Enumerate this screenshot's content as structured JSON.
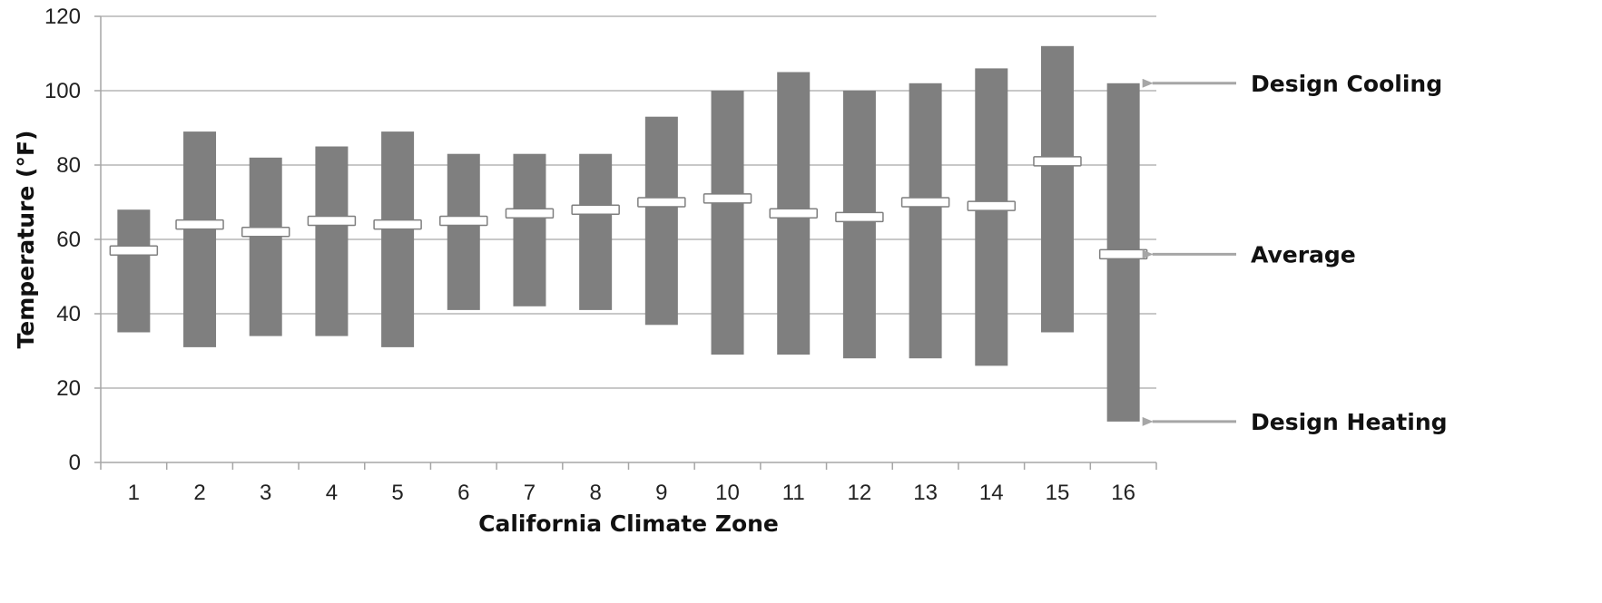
{
  "chart_data": {
    "type": "bar",
    "subtype": "floating-range-with-average-marker",
    "title": "",
    "xlabel": "California Climate Zone",
    "ylabel": "Temperature (°F)",
    "ylim": [
      0,
      120
    ],
    "yticks": [
      0,
      20,
      40,
      60,
      80,
      100,
      120
    ],
    "categories": [
      "1",
      "2",
      "3",
      "4",
      "5",
      "6",
      "7",
      "8",
      "9",
      "10",
      "11",
      "12",
      "13",
      "14",
      "15",
      "16"
    ],
    "series": [
      {
        "name": "Design Heating",
        "values": [
          35,
          31,
          34,
          34,
          31,
          41,
          42,
          41,
          37,
          29,
          29,
          28,
          28,
          26,
          35,
          11
        ]
      },
      {
        "name": "Average",
        "values": [
          57,
          64,
          62,
          65,
          64,
          65,
          67,
          68,
          70,
          71,
          67,
          66,
          70,
          69,
          81,
          56
        ]
      },
      {
        "name": "Design Cooling",
        "values": [
          68,
          89,
          82,
          85,
          89,
          83,
          83,
          83,
          93,
          100,
          105,
          100,
          102,
          106,
          112,
          102
        ]
      }
    ],
    "grid": true,
    "colors": {
      "bar": "#7f7f7f",
      "marker_fill": "#ffffff",
      "marker_stroke": "#7f7f7f",
      "grid": "#a6a6a6",
      "arrow": "#a6a6a6"
    },
    "annotations": [
      {
        "text": "Design Cooling",
        "target_series": "Design Cooling",
        "target_category": "16"
      },
      {
        "text": "Average",
        "target_series": "Average",
        "target_category": "16"
      },
      {
        "text": "Design Heating",
        "target_series": "Design Heating",
        "target_category": "16"
      }
    ]
  }
}
